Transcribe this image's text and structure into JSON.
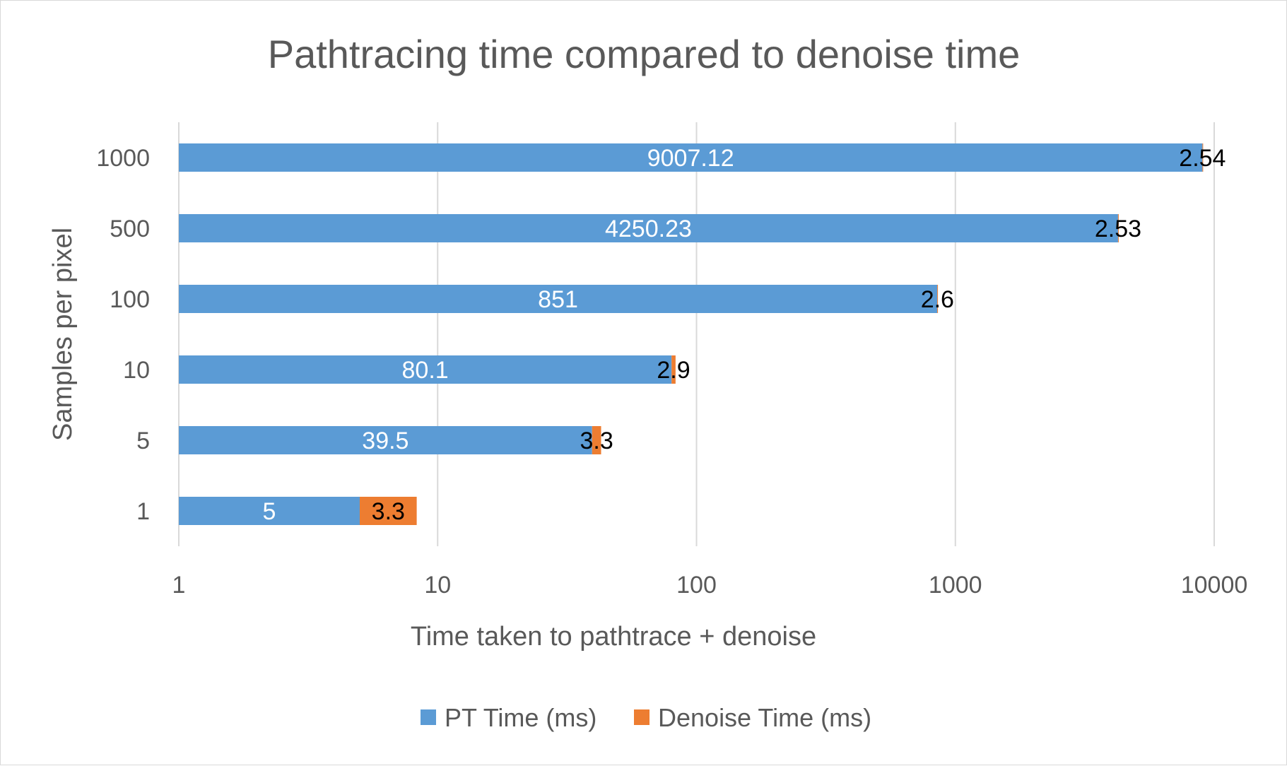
{
  "chart_data": {
    "type": "bar",
    "orientation": "horizontal",
    "stacked": true,
    "title": "Pathtracing time compared to denoise time",
    "xlabel": "Time taken to pathtrace + denoise",
    "ylabel": "Samples per pixel",
    "x_scale": "log",
    "xlim": [
      1,
      10000
    ],
    "x_ticks": [
      "1",
      "10",
      "100",
      "1000",
      "10000"
    ],
    "categories": [
      "1",
      "5",
      "10",
      "100",
      "500",
      "1000"
    ],
    "series": [
      {
        "name": "PT Time (ms)",
        "color": "#5b9bd5",
        "values": [
          5,
          39.5,
          80.1,
          851,
          4250.23,
          9007.12
        ],
        "labels": [
          "5",
          "39.5",
          "80.1",
          "851",
          "4250.23",
          "9007.12"
        ]
      },
      {
        "name": "Denoise Time (ms)",
        "color": "#ed7d31",
        "values": [
          3.3,
          3.3,
          2.9,
          2.6,
          2.53,
          2.54
        ],
        "labels": [
          "3.3",
          "3.3",
          "2.9",
          "2.6",
          "2.53",
          "2.54"
        ]
      }
    ],
    "grid": "vertical",
    "legend_position": "bottom"
  }
}
